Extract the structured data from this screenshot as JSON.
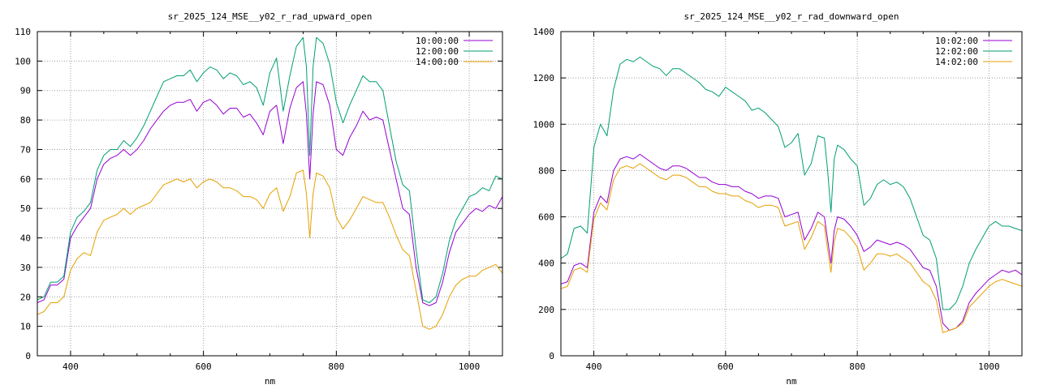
{
  "chart_data": [
    {
      "type": "line",
      "title": "sr_2025_124_MSE__y02_r_rad_upward_open",
      "xlabel": "nm",
      "ylabel": "",
      "xlim": [
        350,
        1050
      ],
      "ylim": [
        0,
        110
      ],
      "xticks": [
        400,
        600,
        800,
        1000
      ],
      "yticks": [
        0,
        10,
        20,
        30,
        40,
        50,
        60,
        70,
        80,
        90,
        100,
        110
      ],
      "grid": true,
      "legend_position": "top-right",
      "series": [
        {
          "name": "10:00:00",
          "color": "#9400d3",
          "x": [
            350,
            360,
            370,
            380,
            390,
            400,
            410,
            420,
            430,
            440,
            450,
            460,
            470,
            480,
            490,
            500,
            510,
            520,
            530,
            540,
            550,
            560,
            570,
            580,
            590,
            600,
            610,
            620,
            630,
            640,
            650,
            660,
            670,
            680,
            690,
            700,
            710,
            720,
            730,
            740,
            750,
            755,
            760,
            765,
            770,
            780,
            790,
            800,
            810,
            820,
            830,
            840,
            850,
            860,
            870,
            880,
            890,
            900,
            910,
            920,
            930,
            940,
            950,
            960,
            970,
            980,
            990,
            1000,
            1010,
            1020,
            1030,
            1040,
            1050
          ],
          "y": [
            18,
            19,
            24,
            24,
            26,
            40,
            44,
            47,
            50,
            60,
            65,
            67,
            68,
            70,
            68,
            70,
            73,
            77,
            80,
            83,
            85,
            86,
            86,
            87,
            83,
            86,
            87,
            85,
            82,
            84,
            84,
            81,
            82,
            79,
            75,
            83,
            85,
            72,
            84,
            91,
            93,
            82,
            60,
            82,
            93,
            92,
            85,
            70,
            68,
            74,
            78,
            83,
            80,
            81,
            80,
            70,
            60,
            50,
            48,
            30,
            18,
            17,
            18,
            25,
            35,
            42,
            45,
            48,
            50,
            49,
            51,
            50,
            54
          ]
        },
        {
          "name": "12:00:00",
          "color": "#009e73",
          "x": [
            350,
            360,
            370,
            380,
            390,
            400,
            410,
            420,
            430,
            440,
            450,
            460,
            470,
            480,
            490,
            500,
            510,
            520,
            530,
            540,
            550,
            560,
            570,
            580,
            590,
            600,
            610,
            620,
            630,
            640,
            650,
            660,
            670,
            680,
            690,
            700,
            710,
            720,
            730,
            740,
            750,
            755,
            760,
            765,
            770,
            780,
            790,
            800,
            810,
            820,
            830,
            840,
            850,
            860,
            870,
            880,
            890,
            900,
            910,
            920,
            930,
            940,
            950,
            960,
            970,
            980,
            990,
            1000,
            1010,
            1020,
            1030,
            1040,
            1050
          ],
          "y": [
            19,
            20,
            25,
            25,
            27,
            42,
            47,
            49,
            52,
            63,
            68,
            70,
            70,
            73,
            71,
            74,
            78,
            83,
            88,
            93,
            94,
            95,
            95,
            97,
            93,
            96,
            98,
            97,
            94,
            96,
            95,
            92,
            93,
            91,
            85,
            96,
            101,
            83,
            95,
            105,
            108,
            98,
            68,
            98,
            108,
            106,
            99,
            86,
            79,
            85,
            90,
            95,
            93,
            93,
            90,
            78,
            66,
            58,
            56,
            36,
            19,
            18,
            20,
            28,
            39,
            46,
            50,
            54,
            55,
            57,
            56,
            61,
            60
          ]
        },
        {
          "name": "14:00:00",
          "color": "#e69f00",
          "x": [
            350,
            360,
            370,
            380,
            390,
            400,
            410,
            420,
            430,
            440,
            450,
            460,
            470,
            480,
            490,
            500,
            510,
            520,
            530,
            540,
            550,
            560,
            570,
            580,
            590,
            600,
            610,
            620,
            630,
            640,
            650,
            660,
            670,
            680,
            690,
            700,
            710,
            720,
            730,
            740,
            750,
            755,
            760,
            765,
            770,
            780,
            790,
            800,
            810,
            820,
            830,
            840,
            850,
            860,
            870,
            880,
            890,
            900,
            910,
            920,
            930,
            940,
            950,
            960,
            970,
            980,
            990,
            1000,
            1010,
            1020,
            1030,
            1040,
            1050
          ],
          "y": [
            14,
            15,
            18,
            18,
            20,
            29,
            33,
            35,
            34,
            42,
            46,
            47,
            48,
            50,
            48,
            50,
            51,
            52,
            55,
            58,
            59,
            60,
            59,
            60,
            57,
            59,
            60,
            59,
            57,
            57,
            56,
            54,
            54,
            53,
            50,
            55,
            57,
            49,
            54,
            62,
            63,
            55,
            40,
            55,
            62,
            61,
            57,
            47,
            43,
            46,
            50,
            54,
            53,
            52,
            52,
            47,
            41,
            36,
            34,
            22,
            10,
            9,
            10,
            14,
            20,
            24,
            26,
            27,
            27,
            29,
            30,
            31,
            28
          ]
        }
      ]
    },
    {
      "type": "line",
      "title": "sr_2025_124_MSE__y02_r_rad_downward_open",
      "xlabel": "nm",
      "ylabel": "",
      "xlim": [
        350,
        1050
      ],
      "ylim": [
        0,
        1400
      ],
      "xticks": [
        400,
        600,
        800,
        1000
      ],
      "yticks": [
        0,
        200,
        400,
        600,
        800,
        1000,
        1200,
        1400
      ],
      "grid": true,
      "legend_position": "top-right",
      "series": [
        {
          "name": "10:02:00",
          "color": "#9400d3",
          "x": [
            350,
            360,
            370,
            380,
            390,
            400,
            410,
            420,
            430,
            440,
            450,
            460,
            470,
            480,
            490,
            500,
            510,
            520,
            530,
            540,
            550,
            560,
            570,
            580,
            590,
            600,
            610,
            620,
            630,
            640,
            650,
            660,
            670,
            680,
            690,
            700,
            710,
            720,
            730,
            740,
            750,
            755,
            760,
            765,
            770,
            780,
            790,
            800,
            810,
            820,
            830,
            840,
            850,
            860,
            870,
            880,
            890,
            900,
            910,
            920,
            930,
            940,
            950,
            960,
            970,
            980,
            990,
            1000,
            1010,
            1020,
            1030,
            1040,
            1050
          ],
          "y": [
            310,
            320,
            390,
            400,
            380,
            620,
            690,
            660,
            800,
            850,
            860,
            850,
            870,
            850,
            830,
            810,
            800,
            820,
            820,
            810,
            790,
            770,
            770,
            750,
            740,
            740,
            730,
            730,
            710,
            700,
            680,
            690,
            690,
            680,
            600,
            610,
            620,
            500,
            550,
            620,
            600,
            500,
            400,
            540,
            600,
            590,
            560,
            520,
            450,
            470,
            500,
            490,
            480,
            490,
            480,
            460,
            420,
            380,
            370,
            300,
            140,
            110,
            120,
            150,
            230,
            270,
            300,
            330,
            350,
            370,
            360,
            370,
            350
          ]
        },
        {
          "name": "12:02:00",
          "color": "#009e73",
          "x": [
            350,
            360,
            370,
            380,
            390,
            400,
            410,
            420,
            430,
            440,
            450,
            460,
            470,
            480,
            490,
            500,
            510,
            520,
            530,
            540,
            550,
            560,
            570,
            580,
            590,
            600,
            610,
            620,
            630,
            640,
            650,
            660,
            670,
            680,
            690,
            700,
            710,
            720,
            730,
            740,
            750,
            755,
            760,
            765,
            770,
            780,
            790,
            800,
            810,
            820,
            830,
            840,
            850,
            860,
            870,
            880,
            890,
            900,
            910,
            920,
            930,
            940,
            950,
            960,
            970,
            980,
            990,
            1000,
            1010,
            1020,
            1030,
            1040,
            1050
          ],
          "y": [
            420,
            440,
            550,
            560,
            530,
            900,
            1000,
            950,
            1150,
            1260,
            1280,
            1270,
            1290,
            1270,
            1250,
            1240,
            1210,
            1240,
            1240,
            1220,
            1200,
            1180,
            1150,
            1140,
            1120,
            1160,
            1140,
            1120,
            1100,
            1060,
            1070,
            1050,
            1020,
            990,
            900,
            920,
            960,
            780,
            830,
            950,
            940,
            800,
            620,
            850,
            910,
            890,
            850,
            820,
            650,
            680,
            740,
            760,
            740,
            750,
            730,
            680,
            600,
            520,
            500,
            420,
            200,
            200,
            230,
            300,
            400,
            460,
            510,
            560,
            580,
            560,
            560,
            550,
            540
          ]
        },
        {
          "name": "14:02:00",
          "color": "#e69f00",
          "x": [
            350,
            360,
            370,
            380,
            390,
            400,
            410,
            420,
            430,
            440,
            450,
            460,
            470,
            480,
            490,
            500,
            510,
            520,
            530,
            540,
            550,
            560,
            570,
            580,
            590,
            600,
            610,
            620,
            630,
            640,
            650,
            660,
            670,
            680,
            690,
            700,
            710,
            720,
            730,
            740,
            750,
            755,
            760,
            765,
            770,
            780,
            790,
            800,
            810,
            820,
            830,
            840,
            850,
            860,
            870,
            880,
            890,
            900,
            910,
            920,
            930,
            940,
            950,
            960,
            970,
            980,
            990,
            1000,
            1010,
            1020,
            1030,
            1040,
            1050
          ],
          "y": [
            290,
            300,
            370,
            380,
            360,
            590,
            660,
            630,
            760,
            810,
            820,
            810,
            830,
            810,
            790,
            770,
            760,
            780,
            780,
            770,
            750,
            730,
            730,
            710,
            700,
            700,
            690,
            690,
            670,
            660,
            640,
            650,
            650,
            640,
            560,
            570,
            580,
            460,
            510,
            580,
            560,
            460,
            360,
            490,
            550,
            540,
            510,
            470,
            370,
            400,
            440,
            440,
            430,
            440,
            420,
            400,
            360,
            320,
            300,
            240,
            100,
            110,
            120,
            140,
            210,
            240,
            270,
            300,
            320,
            330,
            320,
            310,
            300
          ]
        }
      ]
    }
  ]
}
